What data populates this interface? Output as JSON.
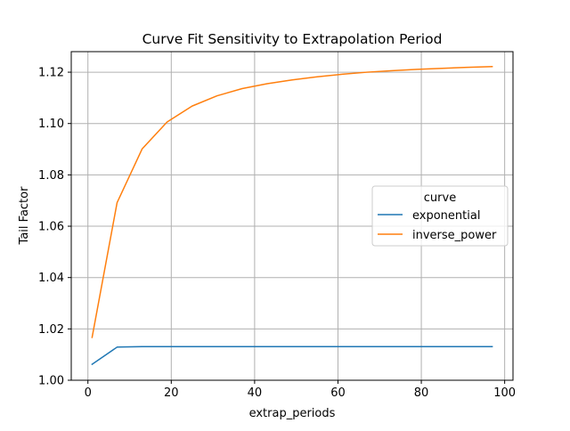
{
  "chart_data": {
    "type": "line",
    "title": "Curve Fit Sensitivity to Extrapolation Period",
    "xlabel": "extrap_periods",
    "ylabel": "Tail Factor",
    "xlim": [
      -4,
      102
    ],
    "ylim": [
      1.0,
      1.128
    ],
    "xticks": [
      0,
      20,
      40,
      60,
      80,
      100
    ],
    "xtick_labels": [
      "0",
      "20",
      "40",
      "60",
      "80",
      "100"
    ],
    "yticks": [
      1.0,
      1.02,
      1.04,
      1.06,
      1.08,
      1.1,
      1.12
    ],
    "ytick_labels": [
      "1.00",
      "1.02",
      "1.04",
      "1.06",
      "1.08",
      "1.10",
      "1.12"
    ],
    "grid": true,
    "legend": {
      "title": "curve",
      "placement": "center-right"
    },
    "x": [
      1,
      7,
      13,
      19,
      25,
      31,
      37,
      43,
      49,
      55,
      61,
      67,
      73,
      79,
      85,
      91,
      97
    ],
    "series": [
      {
        "name": "exponential",
        "color": "#1f77b4",
        "values": [
          1.0062,
          1.0129,
          1.0131,
          1.0131,
          1.0131,
          1.0131,
          1.0131,
          1.0131,
          1.0131,
          1.0131,
          1.0131,
          1.0131,
          1.0131,
          1.0131,
          1.0131,
          1.0131,
          1.0131
        ]
      },
      {
        "name": "inverse_power",
        "color": "#ff7f0e",
        "values": [
          1.0167,
          1.0692,
          1.0901,
          1.1006,
          1.1068,
          1.1108,
          1.1136,
          1.1155,
          1.117,
          1.1182,
          1.1192,
          1.12,
          1.1206,
          1.1211,
          1.1215,
          1.1219,
          1.1222
        ]
      }
    ]
  }
}
